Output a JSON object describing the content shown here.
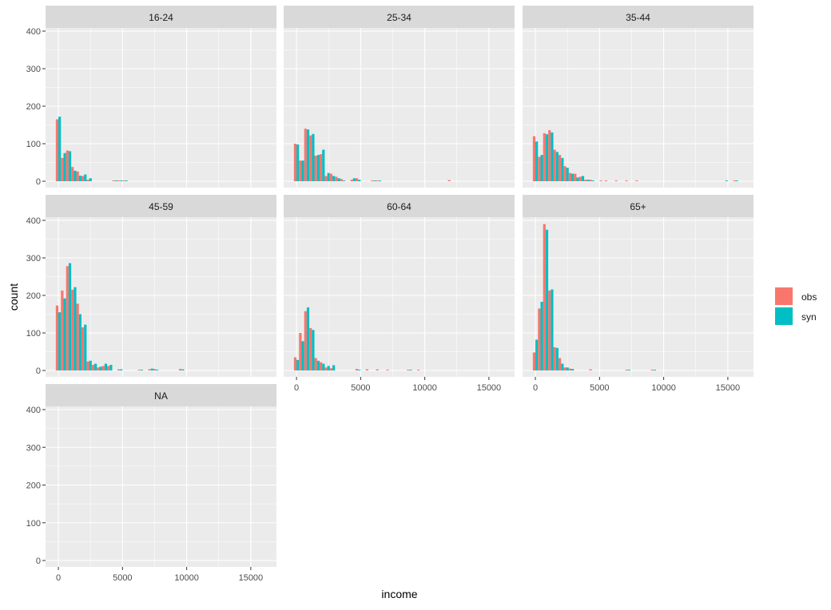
{
  "chart_data": {
    "type": "bar",
    "subtype": "faceted-histogram-dodged",
    "xlabel": "income",
    "ylabel": "count",
    "ylim": [
      0,
      400
    ],
    "xlim": [
      -1000,
      17000
    ],
    "x_ticks": [
      0,
      5000,
      10000,
      15000
    ],
    "y_ticks": [
      0,
      100,
      200,
      300,
      400
    ],
    "bin_width": 400,
    "grid": true,
    "legend": {
      "position": "right",
      "entries": [
        "obs",
        "syn"
      ]
    },
    "colors": {
      "obs": "#F8766D",
      "syn": "#00BFC4",
      "panel_bg": "#EBEBEB",
      "strip_bg": "#D9D9D9",
      "grid": "#FFFFFF",
      "tick_text": "#4D4D4D"
    },
    "facets": [
      {
        "label": "16-24",
        "bins": [
          [
            0,
            165,
            172
          ],
          [
            400,
            62,
            75
          ],
          [
            800,
            82,
            80
          ],
          [
            1200,
            38,
            28
          ],
          [
            1600,
            26,
            15
          ],
          [
            2000,
            14,
            18
          ],
          [
            2400,
            4,
            8
          ],
          [
            4400,
            2,
            2
          ],
          [
            4800,
            2,
            2
          ],
          [
            5200,
            2,
            2
          ]
        ]
      },
      {
        "label": "25-34",
        "bins": [
          [
            0,
            100,
            98
          ],
          [
            400,
            55,
            55
          ],
          [
            800,
            140,
            138
          ],
          [
            1200,
            122,
            126
          ],
          [
            1600,
            68,
            70
          ],
          [
            2000,
            72,
            84
          ],
          [
            2400,
            14,
            22
          ],
          [
            2800,
            20,
            14
          ],
          [
            3200,
            12,
            8
          ],
          [
            3600,
            6,
            2
          ],
          [
            4400,
            4,
            8
          ],
          [
            4800,
            8,
            4
          ],
          [
            6000,
            2,
            2
          ],
          [
            6400,
            2,
            2
          ],
          [
            12000,
            3,
            0
          ]
        ]
      },
      {
        "label": "35-44",
        "bins": [
          [
            0,
            120,
            106
          ],
          [
            400,
            65,
            70
          ],
          [
            800,
            128,
            125
          ],
          [
            1200,
            136,
            130
          ],
          [
            1600,
            84,
            78
          ],
          [
            2000,
            70,
            62
          ],
          [
            2400,
            40,
            36
          ],
          [
            2800,
            22,
            20
          ],
          [
            3200,
            20,
            10
          ],
          [
            3600,
            12,
            14
          ],
          [
            4000,
            4,
            4
          ],
          [
            4400,
            4,
            2
          ],
          [
            5200,
            2,
            0
          ],
          [
            5600,
            2,
            0
          ],
          [
            6400,
            2,
            0
          ],
          [
            7200,
            2,
            0
          ],
          [
            8000,
            2,
            0
          ],
          [
            14800,
            0,
            2
          ],
          [
            15600,
            2,
            2
          ]
        ]
      },
      {
        "label": "45-59",
        "bins": [
          [
            0,
            173,
            155
          ],
          [
            400,
            213,
            192
          ],
          [
            800,
            278,
            286
          ],
          [
            1200,
            215,
            222
          ],
          [
            1600,
            178,
            150
          ],
          [
            2000,
            115,
            122
          ],
          [
            2400,
            24,
            26
          ],
          [
            2800,
            15,
            18
          ],
          [
            3200,
            8,
            10
          ],
          [
            3600,
            12,
            18
          ],
          [
            4000,
            12,
            15
          ],
          [
            4800,
            3,
            3
          ],
          [
            6400,
            2,
            2
          ],
          [
            7200,
            3,
            5
          ],
          [
            7600,
            4,
            2
          ],
          [
            9600,
            4,
            3
          ]
        ]
      },
      {
        "label": "60-64",
        "bins": [
          [
            0,
            35,
            28
          ],
          [
            400,
            100,
            78
          ],
          [
            800,
            158,
            168
          ],
          [
            1200,
            113,
            108
          ],
          [
            1600,
            33,
            26
          ],
          [
            2000,
            22,
            18
          ],
          [
            2400,
            8,
            12
          ],
          [
            2800,
            6,
            14
          ],
          [
            4800,
            4,
            2
          ],
          [
            5600,
            3,
            0
          ],
          [
            6400,
            3,
            0
          ],
          [
            7200,
            2,
            0
          ],
          [
            8800,
            2,
            2
          ],
          [
            9600,
            2,
            0
          ]
        ]
      },
      {
        "label": "65+",
        "bins": [
          [
            0,
            48,
            82
          ],
          [
            400,
            165,
            183
          ],
          [
            800,
            390,
            375
          ],
          [
            1200,
            213,
            216
          ],
          [
            1600,
            62,
            60
          ],
          [
            2000,
            33,
            18
          ],
          [
            2400,
            8,
            8
          ],
          [
            2800,
            5,
            4
          ],
          [
            4400,
            3,
            0
          ],
          [
            7200,
            2,
            2
          ],
          [
            9200,
            2,
            2
          ]
        ]
      },
      {
        "label": "NA",
        "bins": []
      }
    ]
  }
}
